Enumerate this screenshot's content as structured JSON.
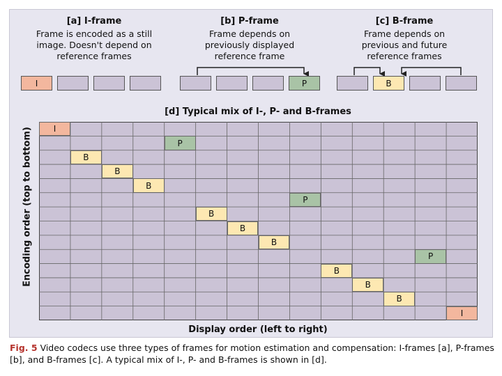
{
  "sections": [
    {
      "title": "[a] I-frame",
      "lines": [
        "Frame is encoded as a still",
        "image. Doesn't depend on",
        "reference frames"
      ]
    },
    {
      "title": "[b] P-frame",
      "lines": [
        "Frame depends on",
        "previously displayed",
        "reference frame"
      ]
    },
    {
      "title": "[c] B-frame",
      "lines": [
        "Frame depends on",
        "previous and future",
        "reference frames"
      ]
    }
  ],
  "frame_rows": [
    {
      "frames": [
        "I",
        "",
        "",
        ""
      ]
    },
    {
      "frames": [
        "",
        "",
        "",
        "P"
      ]
    },
    {
      "frames": [
        "",
        "B",
        "",
        ""
      ]
    }
  ],
  "grid": {
    "title": "[d] Typical mix of I-, P- and B-frames",
    "x_label": "Display order (left to right)",
    "y_label": "Encoding order (top to bottom)",
    "columns": 14,
    "rows": 14,
    "frames": [
      {
        "row": 0,
        "col": 0,
        "type": "I"
      },
      {
        "row": 1,
        "col": 4,
        "type": "P"
      },
      {
        "row": 2,
        "col": 1,
        "type": "B"
      },
      {
        "row": 3,
        "col": 2,
        "type": "B"
      },
      {
        "row": 4,
        "col": 3,
        "type": "B"
      },
      {
        "row": 5,
        "col": 8,
        "type": "P"
      },
      {
        "row": 6,
        "col": 5,
        "type": "B"
      },
      {
        "row": 7,
        "col": 6,
        "type": "B"
      },
      {
        "row": 8,
        "col": 7,
        "type": "B"
      },
      {
        "row": 9,
        "col": 12,
        "type": "P"
      },
      {
        "row": 10,
        "col": 9,
        "type": "B"
      },
      {
        "row": 11,
        "col": 10,
        "type": "B"
      },
      {
        "row": 12,
        "col": 11,
        "type": "B"
      },
      {
        "row": 13,
        "col": 13,
        "type": "I"
      }
    ]
  },
  "colors": {
    "panel": "#e7e6f0",
    "cell": "#cbc3d6",
    "I": "#f3b79e",
    "P": "#a9c3a6",
    "B": "#fde8b2",
    "caption_label": "#b5332d"
  },
  "caption": {
    "label": "Fig. 5",
    "text": "Video codecs use three types of frames for motion estimation and compensation: I-frames [a], P-frames [b], and B-frames [c]. A typical mix of I-, P- and B-frames is shown in [d]."
  }
}
